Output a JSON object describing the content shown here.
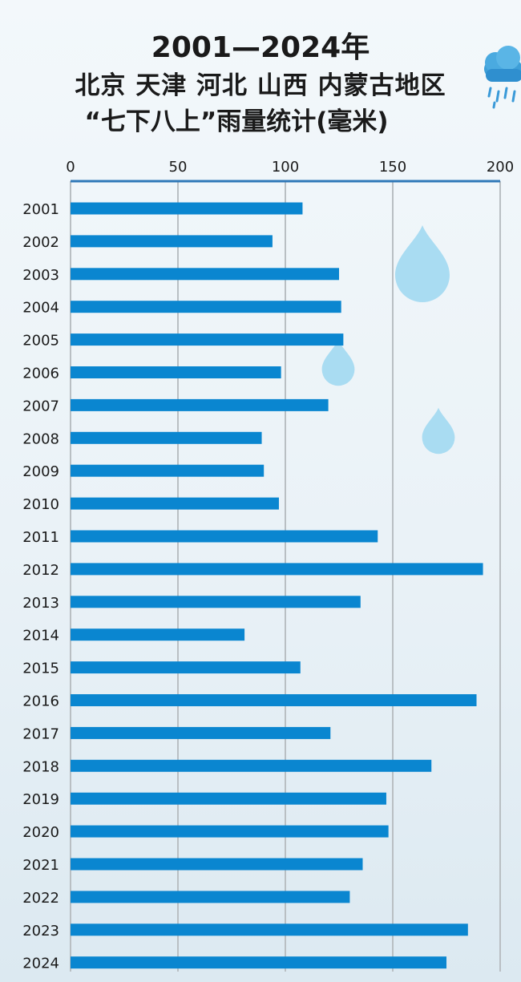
{
  "title": {
    "line1": "2001—2024年",
    "line2": "北京 天津 河北 山西 内蒙古地区",
    "line3": "“七下八上”雨量统计(毫米)"
  },
  "colors": {
    "bar": "#0a86d0",
    "grid": "#b9bfc3",
    "axis": "#2f78b8",
    "drop": "#a9dcf2"
  },
  "icons": {
    "weather": "cloud-rain-icon",
    "decoration": "raindrop-icon"
  },
  "chart_data": {
    "type": "bar",
    "orientation": "horizontal",
    "categories": [
      "2001",
      "2002",
      "2003",
      "2004",
      "2005",
      "2006",
      "2007",
      "2008",
      "2009",
      "2010",
      "2011",
      "2012",
      "2013",
      "2014",
      "2015",
      "2016",
      "2017",
      "2018",
      "2019",
      "2020",
      "2021",
      "2022",
      "2023",
      "2024"
    ],
    "values": [
      108,
      94,
      125,
      126,
      127,
      98,
      120,
      89,
      90,
      97,
      143,
      192,
      135,
      81,
      107,
      189,
      121,
      168,
      147,
      148,
      136,
      130,
      185,
      175
    ],
    "xlim": [
      0,
      200
    ],
    "ticks": [
      "0",
      "50",
      "100",
      "150",
      "200"
    ],
    "tick_values": [
      0,
      50,
      100,
      150,
      200
    ],
    "axis_position": "top",
    "grid": true
  }
}
